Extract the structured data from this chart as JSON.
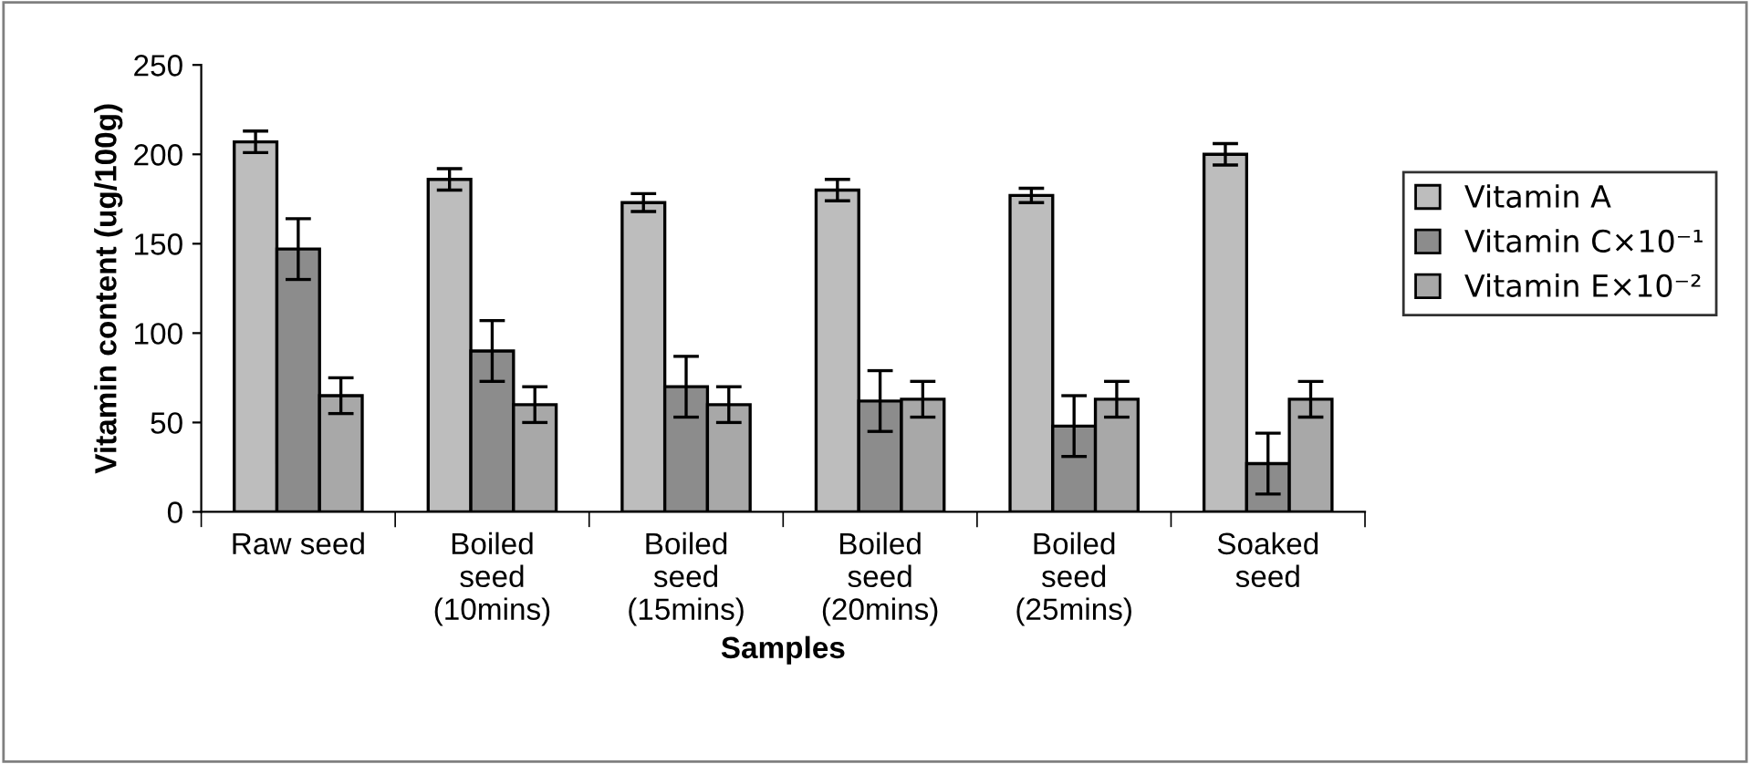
{
  "chart_data": {
    "type": "bar",
    "xlabel": "Samples",
    "ylabel": "Vitamin content (ug/100g)",
    "categories": [
      "Raw seed",
      "Boiled\nseed\n(10mins)",
      "Boiled\nseed\n(15mins)",
      "Boiled\nseed\n(20mins)",
      "Boiled\nseed\n(25mins)",
      "Soaked\nseed"
    ],
    "series": [
      {
        "name": "Vitamin A",
        "color": "#bdbdbd",
        "values": [
          207,
          186,
          173,
          180,
          177,
          200
        ],
        "errors": [
          6,
          6,
          5,
          6,
          4,
          6
        ]
      },
      {
        "name": "Vitamin C×10⁻¹",
        "color": "#8c8c8c",
        "values": [
          147,
          90,
          70,
          62,
          48,
          27
        ],
        "errors": [
          17,
          17,
          17,
          17,
          17,
          17
        ]
      },
      {
        "name": "Vitamin E×10⁻²",
        "color": "#a8a8a8",
        "values": [
          65,
          60,
          60,
          63,
          63,
          63
        ],
        "errors": [
          10,
          10,
          10,
          10,
          10,
          10
        ]
      }
    ],
    "ylim": [
      0,
      250
    ],
    "yticks": [
      0,
      50,
      100,
      150,
      200,
      250
    ],
    "grid": false,
    "legend": "right"
  }
}
